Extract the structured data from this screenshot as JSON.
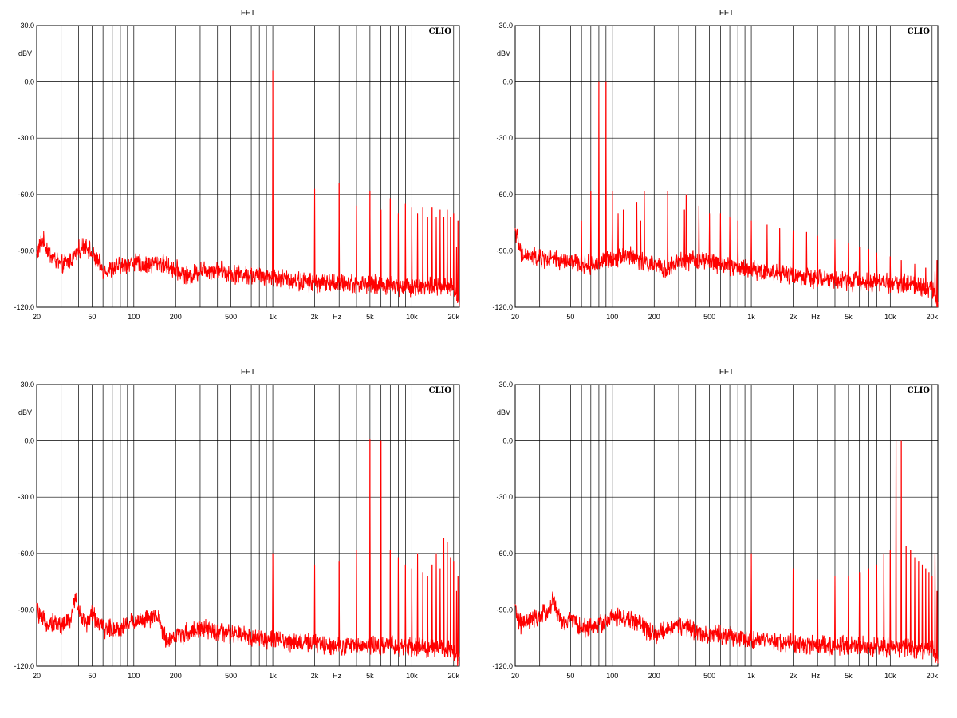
{
  "chart_data": [
    {
      "type": "line",
      "title": "FFT",
      "ylabel": "dBV",
      "xlabel": "Hz",
      "brand": "CLIO",
      "xscale": "log",
      "xlim": [
        20,
        22000
      ],
      "ylim": [
        -120,
        30
      ],
      "grid": true,
      "yticks": [
        "30.0",
        "0.0",
        "-30.0",
        "-60.0",
        "-90.0",
        "-120.0"
      ],
      "xticks": [
        {
          "label": "20",
          "value": 20
        },
        {
          "label": "50",
          "value": 50
        },
        {
          "label": "100",
          "value": 100
        },
        {
          "label": "200",
          "value": 200
        },
        {
          "label": "500",
          "value": 500
        },
        {
          "label": "1k",
          "value": 1000
        },
        {
          "label": "2k",
          "value": 2000
        },
        {
          "label": "Hz",
          "value": 2900
        },
        {
          "label": "5k",
          "value": 5000
        },
        {
          "label": "10k",
          "value": 10000
        },
        {
          "label": "20k",
          "value": 20000
        }
      ],
      "line_color": "#ff0000",
      "noise_floor": [
        [
          20,
          -92
        ],
        [
          22,
          -84
        ],
        [
          25,
          -92
        ],
        [
          30,
          -98
        ],
        [
          35,
          -95
        ],
        [
          40,
          -90
        ],
        [
          45,
          -86
        ],
        [
          50,
          -92
        ],
        [
          60,
          -100
        ],
        [
          70,
          -100
        ],
        [
          80,
          -98
        ],
        [
          100,
          -96
        ],
        [
          120,
          -98
        ],
        [
          150,
          -96
        ],
        [
          200,
          -100
        ],
        [
          250,
          -104
        ],
        [
          300,
          -100
        ],
        [
          400,
          -100
        ],
        [
          500,
          -102
        ],
        [
          700,
          -103
        ],
        [
          1000,
          -104
        ],
        [
          1500,
          -106
        ],
        [
          2000,
          -107
        ],
        [
          3000,
          -107
        ],
        [
          5000,
          -108
        ],
        [
          10000,
          -109
        ],
        [
          15000,
          -109
        ],
        [
          20000,
          -110
        ],
        [
          22000,
          -116
        ]
      ],
      "peaks": [
        {
          "freq": 1000,
          "db": 6
        },
        {
          "freq": 2000,
          "db": -57
        },
        {
          "freq": 3000,
          "db": -54
        },
        {
          "freq": 4000,
          "db": -66
        },
        {
          "freq": 5000,
          "db": -58
        },
        {
          "freq": 6000,
          "db": -68
        },
        {
          "freq": 7000,
          "db": -62
        },
        {
          "freq": 8000,
          "db": -70
        },
        {
          "freq": 9000,
          "db": -65
        },
        {
          "freq": 10000,
          "db": -67
        },
        {
          "freq": 11000,
          "db": -70
        },
        {
          "freq": 12000,
          "db": -67
        },
        {
          "freq": 13000,
          "db": -72
        },
        {
          "freq": 14000,
          "db": -67
        },
        {
          "freq": 15000,
          "db": -72
        },
        {
          "freq": 16000,
          "db": -68
        },
        {
          "freq": 17000,
          "db": -72
        },
        {
          "freq": 18000,
          "db": -68
        },
        {
          "freq": 19000,
          "db": -72
        },
        {
          "freq": 20000,
          "db": -70
        },
        {
          "freq": 21000,
          "db": -88
        },
        {
          "freq": 21500,
          "db": -74
        }
      ]
    },
    {
      "type": "line",
      "title": "FFT",
      "ylabel": "dBV",
      "xlabel": "Hz",
      "brand": "CLIO",
      "xscale": "log",
      "xlim": [
        20,
        22000
      ],
      "ylim": [
        -120,
        30
      ],
      "grid": true,
      "yticks": [
        "30.0",
        "0.0",
        "-30.0",
        "-60.0",
        "-90.0",
        "-120.0"
      ],
      "xticks": [
        {
          "label": "20",
          "value": 20
        },
        {
          "label": "50",
          "value": 50
        },
        {
          "label": "100",
          "value": 100
        },
        {
          "label": "200",
          "value": 200
        },
        {
          "label": "500",
          "value": 500
        },
        {
          "label": "1k",
          "value": 1000
        },
        {
          "label": "2k",
          "value": 2000
        },
        {
          "label": "Hz",
          "value": 2900
        },
        {
          "label": "5k",
          "value": 5000
        },
        {
          "label": "10k",
          "value": 10000
        },
        {
          "label": "20k",
          "value": 20000
        }
      ],
      "line_color": "#ff0000",
      "noise_floor": [
        [
          20,
          -78
        ],
        [
          22,
          -92
        ],
        [
          30,
          -94
        ],
        [
          50,
          -96
        ],
        [
          70,
          -98
        ],
        [
          80,
          -96
        ],
        [
          100,
          -94
        ],
        [
          120,
          -92
        ],
        [
          150,
          -94
        ],
        [
          200,
          -98
        ],
        [
          250,
          -100
        ],
        [
          300,
          -96
        ],
        [
          400,
          -95
        ],
        [
          500,
          -96
        ],
        [
          700,
          -98
        ],
        [
          1000,
          -100
        ],
        [
          2000,
          -103
        ],
        [
          3000,
          -105
        ],
        [
          5000,
          -106
        ],
        [
          10000,
          -107
        ],
        [
          15000,
          -108
        ],
        [
          20000,
          -110
        ],
        [
          22000,
          -118
        ]
      ],
      "peaks": [
        {
          "freq": 60,
          "db": -74
        },
        {
          "freq": 70,
          "db": -58
        },
        {
          "freq": 80,
          "db": 0
        },
        {
          "freq": 90,
          "db": 0
        },
        {
          "freq": 100,
          "db": -58
        },
        {
          "freq": 110,
          "db": -70
        },
        {
          "freq": 120,
          "db": -68
        },
        {
          "freq": 150,
          "db": -64
        },
        {
          "freq": 160,
          "db": -74
        },
        {
          "freq": 170,
          "db": -58
        },
        {
          "freq": 250,
          "db": -58
        },
        {
          "freq": 330,
          "db": -68
        },
        {
          "freq": 340,
          "db": -60
        },
        {
          "freq": 420,
          "db": -66
        },
        {
          "freq": 500,
          "db": -70
        },
        {
          "freq": 600,
          "db": -70
        },
        {
          "freq": 700,
          "db": -72
        },
        {
          "freq": 800,
          "db": -74
        },
        {
          "freq": 1000,
          "db": -74
        },
        {
          "freq": 1300,
          "db": -76
        },
        {
          "freq": 1600,
          "db": -78
        },
        {
          "freq": 2000,
          "db": -79
        },
        {
          "freq": 2500,
          "db": -80
        },
        {
          "freq": 3000,
          "db": -82
        },
        {
          "freq": 4000,
          "db": -84
        },
        {
          "freq": 5000,
          "db": -86
        },
        {
          "freq": 6000,
          "db": -88
        },
        {
          "freq": 7000,
          "db": -89
        },
        {
          "freq": 8000,
          "db": -91
        },
        {
          "freq": 10000,
          "db": -93
        },
        {
          "freq": 12000,
          "db": -95
        },
        {
          "freq": 15000,
          "db": -97
        },
        {
          "freq": 18000,
          "db": -99
        },
        {
          "freq": 21000,
          "db": -101
        },
        {
          "freq": 21700,
          "db": -95
        }
      ]
    },
    {
      "type": "line",
      "title": "FFT",
      "ylabel": "dBV",
      "xlabel": "Hz",
      "brand": "CLIO",
      "xscale": "log",
      "xlim": [
        20,
        22000
      ],
      "ylim": [
        -120,
        30
      ],
      "grid": true,
      "yticks": [
        "30.0",
        "0.0",
        "-30.0",
        "-60.0",
        "-90.0",
        "-120.0"
      ],
      "xticks": [
        {
          "label": "20",
          "value": 20
        },
        {
          "label": "50",
          "value": 50
        },
        {
          "label": "100",
          "value": 100
        },
        {
          "label": "200",
          "value": 200
        },
        {
          "label": "500",
          "value": 500
        },
        {
          "label": "1k",
          "value": 1000
        },
        {
          "label": "2k",
          "value": 2000
        },
        {
          "label": "Hz",
          "value": 2900
        },
        {
          "label": "5k",
          "value": 5000
        },
        {
          "label": "10k",
          "value": 10000
        },
        {
          "label": "20k",
          "value": 20000
        }
      ],
      "line_color": "#ff0000",
      "noise_floor": [
        [
          20,
          -90
        ],
        [
          22,
          -96
        ],
        [
          30,
          -98
        ],
        [
          35,
          -96
        ],
        [
          38,
          -82
        ],
        [
          40,
          -90
        ],
        [
          45,
          -98
        ],
        [
          50,
          -92
        ],
        [
          60,
          -100
        ],
        [
          80,
          -100
        ],
        [
          100,
          -96
        ],
        [
          130,
          -95
        ],
        [
          150,
          -94
        ],
        [
          170,
          -106
        ],
        [
          200,
          -104
        ],
        [
          250,
          -102
        ],
        [
          300,
          -100
        ],
        [
          400,
          -102
        ],
        [
          500,
          -103
        ],
        [
          700,
          -104
        ],
        [
          1000,
          -106
        ],
        [
          2000,
          -108
        ],
        [
          3000,
          -109
        ],
        [
          5000,
          -109
        ],
        [
          10000,
          -110
        ],
        [
          20000,
          -111
        ],
        [
          22000,
          -116
        ]
      ],
      "peaks": [
        {
          "freq": 1000,
          "db": -60
        },
        {
          "freq": 2000,
          "db": -66
        },
        {
          "freq": 3000,
          "db": -64
        },
        {
          "freq": 4000,
          "db": -58
        },
        {
          "freq": 5000,
          "db": 1
        },
        {
          "freq": 6000,
          "db": 0
        },
        {
          "freq": 7000,
          "db": -58
        },
        {
          "freq": 8000,
          "db": -62
        },
        {
          "freq": 9000,
          "db": -66
        },
        {
          "freq": 10000,
          "db": -68
        },
        {
          "freq": 11000,
          "db": -60
        },
        {
          "freq": 12000,
          "db": -70
        },
        {
          "freq": 13000,
          "db": -72
        },
        {
          "freq": 14000,
          "db": -66
        },
        {
          "freq": 15000,
          "db": -60
        },
        {
          "freq": 16000,
          "db": -68
        },
        {
          "freq": 17000,
          "db": -52
        },
        {
          "freq": 18000,
          "db": -54
        },
        {
          "freq": 19000,
          "db": -62
        },
        {
          "freq": 20000,
          "db": -64
        },
        {
          "freq": 21000,
          "db": -80
        },
        {
          "freq": 21500,
          "db": -72
        }
      ]
    },
    {
      "type": "line",
      "title": "FFT",
      "ylabel": "dBV",
      "xlabel": "Hz",
      "brand": "CLIO",
      "xscale": "log",
      "xlim": [
        20,
        22000
      ],
      "ylim": [
        -120,
        30
      ],
      "grid": true,
      "yticks": [
        "30.0",
        "0.0",
        "-30.0",
        "-60.0",
        "-90.0",
        "-120.0"
      ],
      "xticks": [
        {
          "label": "20",
          "value": 20
        },
        {
          "label": "50",
          "value": 50
        },
        {
          "label": "100",
          "value": 100
        },
        {
          "label": "200",
          "value": 200
        },
        {
          "label": "500",
          "value": 500
        },
        {
          "label": "1k",
          "value": 1000
        },
        {
          "label": "2k",
          "value": 2000
        },
        {
          "label": "Hz",
          "value": 2900
        },
        {
          "label": "5k",
          "value": 5000
        },
        {
          "label": "10k",
          "value": 10000
        },
        {
          "label": "20k",
          "value": 20000
        }
      ],
      "line_color": "#ff0000",
      "noise_floor": [
        [
          20,
          -90
        ],
        [
          22,
          -98
        ],
        [
          30,
          -94
        ],
        [
          35,
          -90
        ],
        [
          38,
          -84
        ],
        [
          40,
          -92
        ],
        [
          45,
          -98
        ],
        [
          50,
          -94
        ],
        [
          60,
          -100
        ],
        [
          80,
          -98
        ],
        [
          100,
          -94
        ],
        [
          150,
          -96
        ],
        [
          200,
          -104
        ],
        [
          250,
          -100
        ],
        [
          300,
          -98
        ],
        [
          400,
          -102
        ],
        [
          500,
          -103
        ],
        [
          700,
          -104
        ],
        [
          1000,
          -106
        ],
        [
          2000,
          -108
        ],
        [
          3000,
          -109
        ],
        [
          5000,
          -109
        ],
        [
          10000,
          -110
        ],
        [
          20000,
          -111
        ],
        [
          22000,
          -116
        ]
      ],
      "peaks": [
        {
          "freq": 1000,
          "db": -60
        },
        {
          "freq": 2000,
          "db": -68
        },
        {
          "freq": 3000,
          "db": -74
        },
        {
          "freq": 4000,
          "db": -72
        },
        {
          "freq": 5000,
          "db": -72
        },
        {
          "freq": 6000,
          "db": -70
        },
        {
          "freq": 7000,
          "db": -68
        },
        {
          "freq": 8000,
          "db": -66
        },
        {
          "freq": 9000,
          "db": -60
        },
        {
          "freq": 10000,
          "db": -58
        },
        {
          "freq": 11000,
          "db": 0
        },
        {
          "freq": 12000,
          "db": 0
        },
        {
          "freq": 13000,
          "db": -56
        },
        {
          "freq": 14000,
          "db": -58
        },
        {
          "freq": 15000,
          "db": -62
        },
        {
          "freq": 16000,
          "db": -64
        },
        {
          "freq": 17000,
          "db": -66
        },
        {
          "freq": 18000,
          "db": -68
        },
        {
          "freq": 19000,
          "db": -70
        },
        {
          "freq": 20000,
          "db": -72
        },
        {
          "freq": 21000,
          "db": -60
        },
        {
          "freq": 21700,
          "db": -80
        }
      ]
    }
  ]
}
